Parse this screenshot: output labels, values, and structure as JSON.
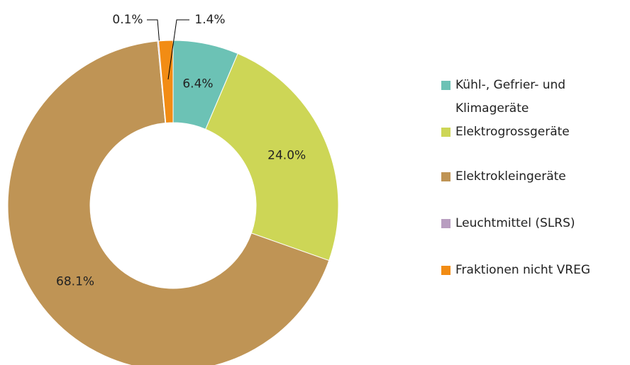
{
  "chart_data": {
    "type": "donut",
    "categories": [
      "Kühl-, Gefrier- und Klimageräte",
      "Elektrogrossgeräte",
      "Elektrokleingeräte",
      "Leuchtmittel (SLRS)",
      "Fraktionen nicht VREG"
    ],
    "values": [
      6.4,
      24.0,
      68.1,
      0.1,
      1.4
    ],
    "value_labels": [
      "6.4%",
      "24.0%",
      "68.1%",
      "0.1%",
      "1.4%"
    ],
    "colors": [
      "#6cc2b5",
      "#cdd656",
      "#bf9455",
      "#b89dc0",
      "#f28c14"
    ],
    "legend": "right"
  }
}
